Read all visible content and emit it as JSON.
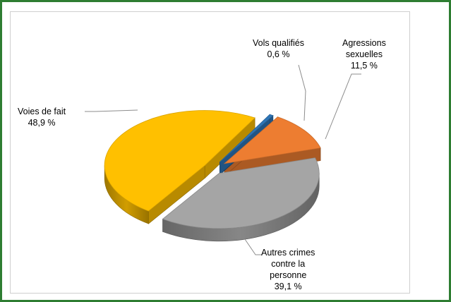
{
  "chart_data": {
    "type": "pie",
    "style": "3d-exploded",
    "slices": [
      {
        "name": "Vols qualifiés",
        "value": 0.6,
        "label": "0,6 %",
        "color": "#2e75b6"
      },
      {
        "name": "Agressions sexuelles",
        "name_lines": [
          "Agressions",
          "sexuelles"
        ],
        "value": 11.5,
        "label": "11,5 %",
        "color": "#ed7d31"
      },
      {
        "name": "Autres crimes contre la personne",
        "name_lines": [
          "Autres crimes",
          "contre la",
          "personne"
        ],
        "value": 39.1,
        "label": "39,1 %",
        "color": "#a5a5a5"
      },
      {
        "name": "Voies de fait",
        "value": 48.9,
        "label": "48,9 %",
        "color": "#ffc000"
      }
    ]
  },
  "colors": {
    "frame_border": "#2e7d32",
    "chart_border": "#cfcfcf",
    "leader_line": "#8c8c8c"
  }
}
